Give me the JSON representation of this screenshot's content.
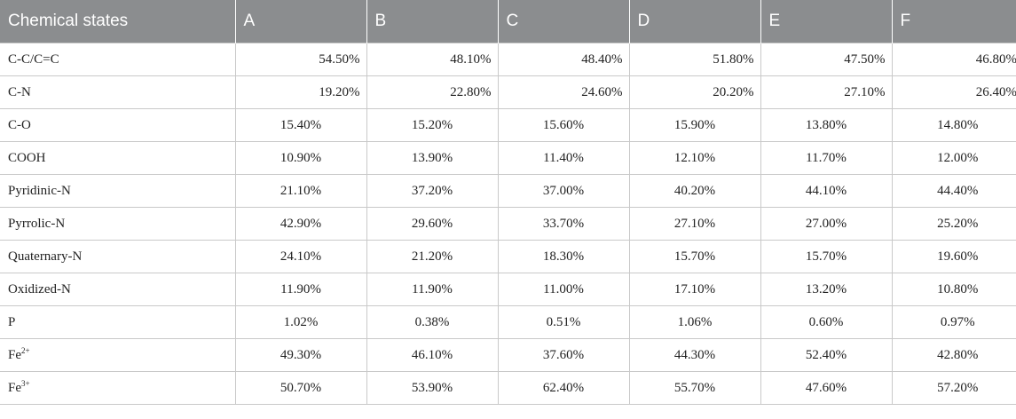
{
  "table": {
    "headers": [
      "Chemical states",
      "A",
      "B",
      "C",
      "D",
      "E",
      "F"
    ],
    "rows": [
      {
        "label": "C-C/C=C",
        "values": [
          "54.50%",
          "48.10%",
          "48.40%",
          "51.80%",
          "47.50%",
          "46.80%"
        ],
        "align": "right"
      },
      {
        "label": "C-N",
        "values": [
          "19.20%",
          "22.80%",
          "24.60%",
          "20.20%",
          "27.10%",
          "26.40%"
        ],
        "align": "right"
      },
      {
        "label": "C-O",
        "values": [
          "15.40%",
          "15.20%",
          "15.60%",
          "15.90%",
          "13.80%",
          "14.80%"
        ],
        "align": "center"
      },
      {
        "label": "COOH",
        "values": [
          "10.90%",
          "13.90%",
          "11.40%",
          "12.10%",
          "11.70%",
          "12.00%"
        ],
        "align": "center"
      },
      {
        "label": "Pyridinic-N",
        "values": [
          "21.10%",
          "37.20%",
          "37.00%",
          "40.20%",
          "44.10%",
          "44.40%"
        ],
        "align": "center"
      },
      {
        "label": "Pyrrolic-N",
        "values": [
          "42.90%",
          "29.60%",
          "33.70%",
          "27.10%",
          "27.00%",
          "25.20%"
        ],
        "align": "center"
      },
      {
        "label": "Quaternary-N",
        "values": [
          "24.10%",
          "21.20%",
          "18.30%",
          "15.70%",
          "15.70%",
          "19.60%"
        ],
        "align": "center"
      },
      {
        "label": "Oxidized-N",
        "values": [
          "11.90%",
          "11.90%",
          "11.00%",
          "17.10%",
          "13.20%",
          "10.80%"
        ],
        "align": "center"
      },
      {
        "label": "P",
        "values": [
          "1.02%",
          "0.38%",
          "0.51%",
          "1.06%",
          "0.60%",
          "0.97%"
        ],
        "align": "center"
      },
      {
        "label": "Fe",
        "sup": "2+",
        "values": [
          "49.30%",
          "46.10%",
          "37.60%",
          "44.30%",
          "52.40%",
          "42.80%"
        ],
        "align": "center"
      },
      {
        "label": "Fe",
        "sup": "3+",
        "values": [
          "50.70%",
          "53.90%",
          "62.40%",
          "55.70%",
          "47.60%",
          "57.20%"
        ],
        "align": "center"
      }
    ]
  }
}
